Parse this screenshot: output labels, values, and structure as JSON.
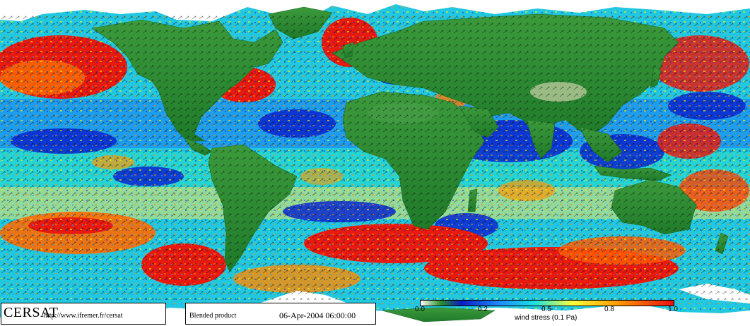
{
  "logo": "CERSAT",
  "url": "http://www.ifremer.fr/cersat",
  "product": "Blended product",
  "datetime": "06-Apr-2004 06:00:00",
  "colorbar": {
    "ticks": [
      "0.0",
      "0.2",
      "0.5",
      "0.8",
      "1.0"
    ],
    "label": "wind stress (0.1 Pa)",
    "colors": [
      "#ffffff",
      "#2a8f2a",
      "#0a1cc0",
      "#1e90ff",
      "#19e0e0",
      "#ffff3a",
      "#ff9a00",
      "#e81010"
    ]
  },
  "colors": {
    "land": "#2f8a3a",
    "ice": "#ffffff",
    "calm": "#1a3ad8",
    "moderate": "#22d6d6",
    "strong": "#e41e12"
  }
}
